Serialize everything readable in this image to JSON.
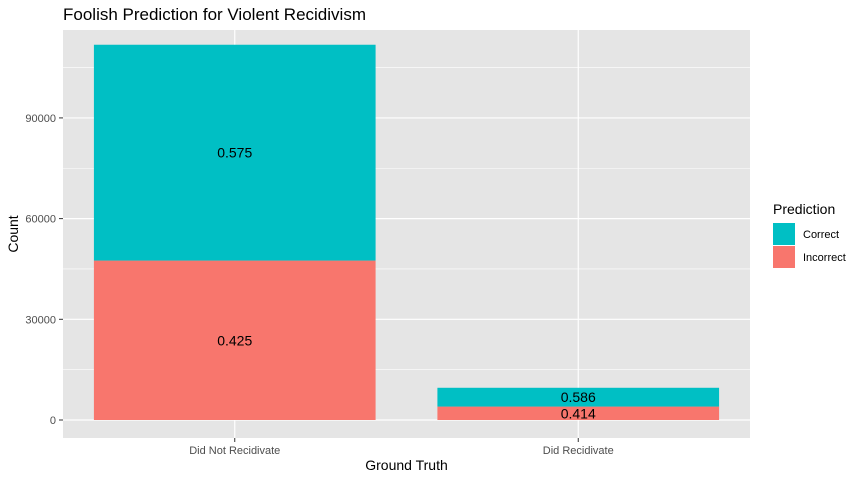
{
  "chart_data": {
    "type": "bar",
    "stacked": true,
    "title": "Foolish Prediction for Violent Recidivism",
    "xlabel": "Ground Truth",
    "ylabel": "Count",
    "categories": [
      "Did Not Recidivate",
      "Did Recidivate"
    ],
    "series": [
      {
        "name": "Incorrect",
        "values": [
          47500,
          4000
        ],
        "labels": [
          "0.425",
          "0.414"
        ],
        "color": "#F8766D"
      },
      {
        "name": "Correct",
        "values": [
          64300,
          5600
        ],
        "labels": [
          "0.575",
          "0.586"
        ],
        "color": "#00BFC4"
      }
    ],
    "ylim": [
      0,
      115000
    ],
    "yticks": [
      0,
      30000,
      60000,
      90000
    ],
    "ytick_labels": [
      "0",
      "30000",
      "60000",
      "90000"
    ],
    "grid": true,
    "legend": {
      "title": "Prediction",
      "placement": "right",
      "order": [
        "Correct",
        "Incorrect"
      ]
    },
    "colors": {
      "panel": "#E5E5E5",
      "grid": "#FFFFFF"
    }
  }
}
